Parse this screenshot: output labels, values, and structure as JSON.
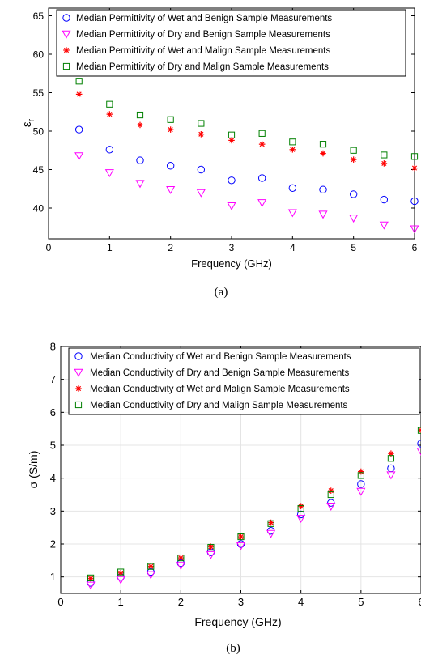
{
  "chart_data": [
    {
      "type": "scatter",
      "id": "a",
      "caption": "(a)",
      "xlabel": "Frequency (GHz)",
      "ylabel_main": "ε",
      "ylabel_sub": "r",
      "xlim": [
        0,
        6
      ],
      "ylim": [
        36,
        66
      ],
      "xticks": [
        0,
        1,
        2,
        3,
        4,
        5,
        6
      ],
      "yticks": [
        40,
        45,
        50,
        55,
        60,
        65
      ],
      "grid": false,
      "legend_position": "top-right",
      "x": [
        0.5,
        1,
        1.5,
        2,
        2.5,
        3,
        3.5,
        4,
        4.5,
        5,
        5.5,
        6
      ],
      "series": [
        {
          "name": "Median Permittivity of Wet and Benign Sample Measurements",
          "marker": "circle",
          "color": "#0000ff",
          "values": [
            50.2,
            47.6,
            46.2,
            45.5,
            45.0,
            43.6,
            43.9,
            42.6,
            42.4,
            41.8,
            41.1,
            40.9
          ]
        },
        {
          "name": "Median Permittivity of Dry and Benign Sample Measurements",
          "marker": "triangle-down",
          "color": "#ff00ff",
          "values": [
            46.8,
            44.6,
            43.2,
            42.4,
            42.0,
            40.3,
            40.7,
            39.4,
            39.2,
            38.7,
            37.8,
            37.3
          ]
        },
        {
          "name": "Median Permittivity of Wet and Malign Sample Measurements",
          "marker": "asterisk",
          "color": "#ff0000",
          "values": [
            54.8,
            52.2,
            50.8,
            50.2,
            49.6,
            48.8,
            48.3,
            47.6,
            47.1,
            46.3,
            45.8,
            45.2
          ]
        },
        {
          "name": "Median Permittivity of Dry and Malign Sample Measurements",
          "marker": "square",
          "color": "#008000",
          "values": [
            56.5,
            53.5,
            52.1,
            51.5,
            51.0,
            49.5,
            49.7,
            48.6,
            48.3,
            47.5,
            46.9,
            46.7
          ]
        }
      ]
    },
    {
      "type": "scatter",
      "id": "b",
      "caption": "(b)",
      "xlabel": "Frequency (GHz)",
      "ylabel_main": "σ (S/m)",
      "ylabel_sub": "",
      "xlim": [
        0,
        6
      ],
      "ylim": [
        0.5,
        8
      ],
      "xticks": [
        0,
        1,
        2,
        3,
        4,
        5,
        6
      ],
      "yticks": [
        1,
        2,
        3,
        4,
        5,
        6,
        7,
        8
      ],
      "grid": true,
      "legend_position": "top-right",
      "x": [
        0.5,
        1,
        1.5,
        2,
        2.5,
        3,
        3.5,
        4,
        4.5,
        5,
        5.5,
        6
      ],
      "series": [
        {
          "name": "Median Conductivity of Wet and Benign Sample Measurements",
          "marker": "circle",
          "color": "#0000ff",
          "values": [
            0.82,
            1.0,
            1.15,
            1.42,
            1.75,
            2.0,
            2.4,
            2.9,
            3.25,
            3.82,
            4.3,
            5.05
          ]
        },
        {
          "name": "Median Conductivity of Dry and Benign Sample Measurements",
          "marker": "triangle-down",
          "color": "#ff00ff",
          "values": [
            0.75,
            0.92,
            1.07,
            1.35,
            1.68,
            1.95,
            2.32,
            2.78,
            3.15,
            3.6,
            4.1,
            4.82
          ]
        },
        {
          "name": "Median Conductivity of Wet and Malign Sample Measurements",
          "marker": "asterisk",
          "color": "#ff0000",
          "values": [
            0.95,
            1.12,
            1.32,
            1.58,
            1.92,
            2.22,
            2.65,
            3.15,
            3.62,
            4.2,
            4.75,
            5.45
          ]
        },
        {
          "name": "Median Conductivity of Dry and Malign Sample Measurements",
          "marker": "square",
          "color": "#008000",
          "values": [
            0.97,
            1.15,
            1.32,
            1.58,
            1.9,
            2.22,
            2.62,
            3.08,
            3.5,
            4.08,
            4.6,
            5.45
          ]
        }
      ]
    }
  ]
}
